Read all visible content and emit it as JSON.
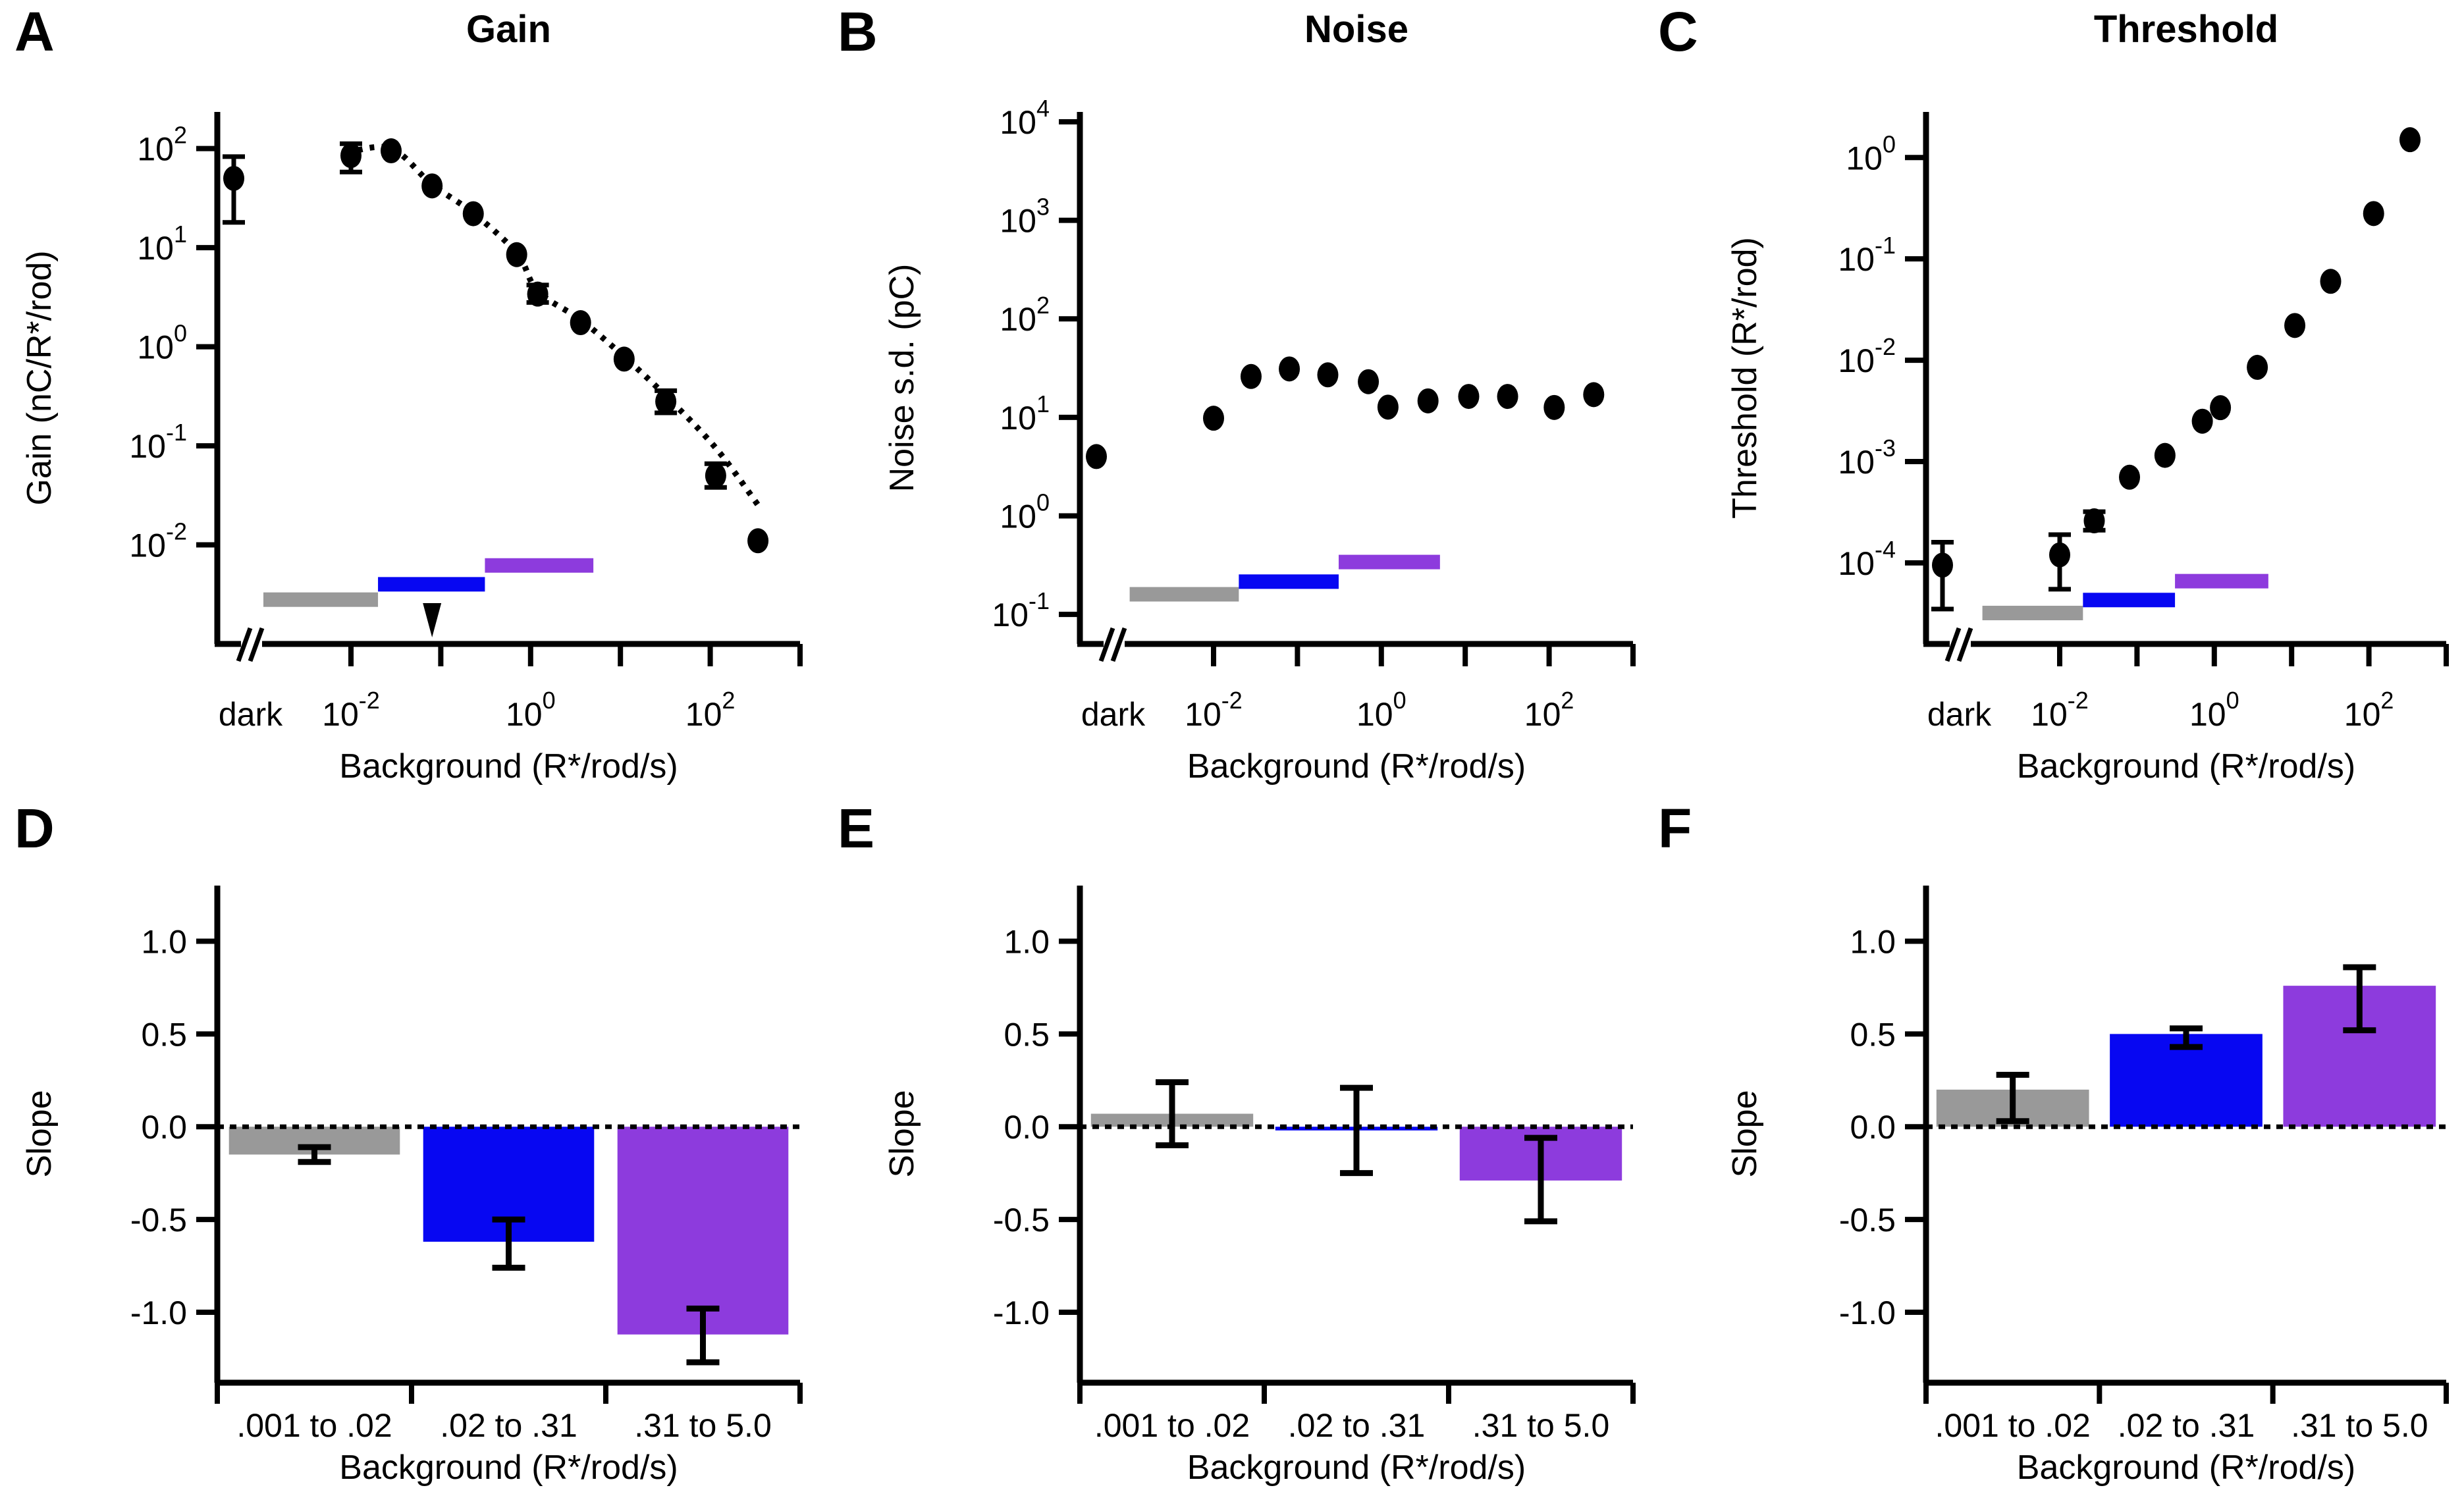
{
  "colors": {
    "gray": "#999999",
    "blue": "#0707f2",
    "purple": "#8d3bdd",
    "black": "#000000",
    "background": "#ffffff"
  },
  "chart_data": [
    {
      "panel_label": "A",
      "type": "scatter-log",
      "title": "Gain",
      "ylabel": "Gain (nC/R*/rod)",
      "xlabel": "Background (R*/rod/s)",
      "dark_label": "dark",
      "x_log_range": [
        -2,
        3
      ],
      "x_tick_exponents": [
        -2,
        -1,
        0,
        1,
        2,
        3
      ],
      "x_labeled_exponents": [
        -2,
        0,
        2
      ],
      "y_log_range": [
        2.37,
        -3.0
      ],
      "y_tick_exponents": [
        2,
        1,
        0,
        -1,
        -2
      ],
      "axis_break": true,
      "dark_point": {
        "value": 50,
        "err_lo": 18,
        "err_hi": 83
      },
      "points": {
        "x": [
          0.01,
          0.028,
          0.08,
          0.23,
          0.7,
          1.2,
          3.6,
          11,
          32,
          115,
          340
        ],
        "y": [
          85,
          95,
          42,
          22,
          8.5,
          3.4,
          1.75,
          0.75,
          0.28,
          0.05,
          0.011
        ],
        "err_lo": [
          58,
          86,
          38,
          19.5,
          7.6,
          2.8,
          1.6,
          0.67,
          0.215,
          0.038,
          0.0104
        ],
        "err_hi": [
          112,
          105,
          47,
          25,
          9.5,
          4.2,
          1.95,
          0.84,
          0.36,
          0.066,
          0.0117
        ]
      },
      "fit_curve_log10": [
        [
          -2.05,
          1.96
        ],
        [
          -1.55,
          2.0
        ],
        [
          -1.1,
          1.64
        ],
        [
          -0.64,
          1.35
        ],
        [
          -0.15,
          0.94
        ],
        [
          0.08,
          0.56
        ],
        [
          0.56,
          0.27
        ],
        [
          1.04,
          -0.1
        ],
        [
          1.51,
          -0.5
        ],
        [
          2.06,
          -1.02
        ],
        [
          2.55,
          -1.62
        ]
      ],
      "range_bars": [
        {
          "name": "gray",
          "x0": 0.001,
          "x1": 0.02,
          "y": 0.0028
        },
        {
          "name": "blue",
          "x0": 0.02,
          "x1": 0.31,
          "y": 0.004
        },
        {
          "name": "purple",
          "x0": 0.31,
          "x1": 5.0,
          "y": 0.0062
        }
      ],
      "arrow_marker_x": 0.08
    },
    {
      "panel_label": "B",
      "type": "scatter-log",
      "title": "Noise",
      "ylabel": "Noise s.d. (pC)",
      "xlabel": "Background (R*/rod/s)",
      "dark_label": "dark",
      "x_log_range": [
        -2,
        3
      ],
      "x_tick_exponents": [
        -2,
        -1,
        0,
        1,
        2,
        3
      ],
      "x_labeled_exponents": [
        -2,
        0,
        2
      ],
      "y_log_range": [
        4.1,
        -1.3
      ],
      "y_tick_exponents": [
        4,
        3,
        2,
        1,
        0,
        -1
      ],
      "axis_break": true,
      "dark_point": {
        "value": 4.0,
        "err_lo": 4.0,
        "err_hi": 4.0
      },
      "points": {
        "x": [
          0.01,
          0.028,
          0.08,
          0.23,
          0.7,
          1.2,
          3.6,
          11,
          32,
          115,
          340
        ],
        "y": [
          9.8,
          26,
          31,
          27,
          23,
          12.7,
          14.7,
          16.3,
          16.3,
          12.6,
          17
        ],
        "err_lo": [
          9.8,
          26,
          31,
          27,
          23,
          12.7,
          14.7,
          16.3,
          16.3,
          12.6,
          17
        ],
        "err_hi": [
          9.8,
          26,
          31,
          27,
          23,
          12.7,
          14.7,
          16.3,
          16.3,
          12.6,
          17
        ]
      },
      "fit_curve_log10": [],
      "range_bars": [
        {
          "name": "gray",
          "x0": 0.001,
          "x1": 0.02,
          "y": 0.16
        },
        {
          "name": "blue",
          "x0": 0.02,
          "x1": 0.31,
          "y": 0.215
        },
        {
          "name": "purple",
          "x0": 0.31,
          "x1": 5.0,
          "y": 0.34
        }
      ],
      "arrow_marker_x": null
    },
    {
      "panel_label": "C",
      "type": "scatter-log",
      "title": "Threshold",
      "ylabel": "Threshold (R*/rod)",
      "xlabel": "Background (R*/rod/s)",
      "dark_label": "dark",
      "x_log_range": [
        -2,
        3
      ],
      "x_tick_exponents": [
        -2,
        -1,
        0,
        1,
        2,
        3
      ],
      "x_labeled_exponents": [
        -2,
        0,
        2
      ],
      "y_log_range": [
        0.45,
        -4.8
      ],
      "y_tick_exponents": [
        0,
        -1,
        -2,
        -3,
        -4
      ],
      "axis_break": true,
      "dark_point": {
        "value": 9.5e-05,
        "err_lo": 3.5e-05,
        "err_hi": 0.00016
      },
      "points": {
        "x": [
          0.01,
          0.028,
          0.08,
          0.23,
          0.7,
          1.2,
          3.6,
          11,
          32,
          115,
          340
        ],
        "y": [
          0.00012,
          0.00026,
          0.0007,
          0.00115,
          0.0025,
          0.0034,
          0.0085,
          0.022,
          0.06,
          0.28,
          1.5
        ],
        "err_lo": [
          5.5e-05,
          0.00021,
          0.0006,
          0.001,
          0.0023,
          0.00315,
          0.0079,
          0.0195,
          0.052,
          0.23,
          1.45
        ],
        "err_hi": [
          0.00019,
          0.00032,
          0.00082,
          0.00132,
          0.00275,
          0.0037,
          0.0092,
          0.025,
          0.069,
          0.33,
          1.56
        ]
      },
      "fit_curve_log10": [],
      "range_bars": [
        {
          "name": "gray",
          "x0": 0.001,
          "x1": 0.02,
          "y": 3.2e-05
        },
        {
          "name": "blue",
          "x0": 0.02,
          "x1": 0.31,
          "y": 4.3e-05
        },
        {
          "name": "purple",
          "x0": 0.31,
          "x1": 5.0,
          "y": 6.6e-05
        }
      ],
      "arrow_marker_x": null
    },
    {
      "panel_label": "D",
      "type": "bar",
      "ylabel": "Slope",
      "xlabel": "Background (R*/rod/s)",
      "categories": [
        ".001 to .02",
        ".02 to .31",
        ".31 to 5.0"
      ],
      "bar_colors": [
        "gray",
        "blue",
        "purple"
      ],
      "values": [
        -0.15,
        -0.62,
        -1.12
      ],
      "err_lo": [
        -0.19,
        -0.76,
        -1.27
      ],
      "err_hi": [
        -0.11,
        -0.5,
        -0.98
      ],
      "y_ticks": [
        1.0,
        0.5,
        0.0,
        -0.5,
        -1.0
      ],
      "y_range": [
        1.3,
        -1.38
      ],
      "zero_line": true
    },
    {
      "panel_label": "E",
      "type": "bar",
      "ylabel": "Slope",
      "xlabel": "Background (R*/rod/s)",
      "categories": [
        ".001 to .02",
        ".02 to .31",
        ".31 to 5.0"
      ],
      "bar_colors": [
        "gray",
        "blue",
        "purple"
      ],
      "values": [
        0.07,
        -0.02,
        -0.29
      ],
      "err_lo": [
        -0.1,
        -0.25,
        -0.51
      ],
      "err_hi": [
        0.24,
        0.21,
        -0.06
      ],
      "y_ticks": [
        1.0,
        0.5,
        0.0,
        -0.5,
        -1.0
      ],
      "y_range": [
        1.3,
        -1.38
      ],
      "zero_line": true
    },
    {
      "panel_label": "F",
      "type": "bar",
      "ylabel": "Slope",
      "xlabel": "Background (R*/rod/s)",
      "categories": [
        ".001 to .02",
        ".02 to .31",
        ".31 to 5.0"
      ],
      "bar_colors": [
        "gray",
        "blue",
        "purple"
      ],
      "values": [
        0.2,
        0.5,
        0.76
      ],
      "err_lo": [
        0.03,
        0.43,
        0.52
      ],
      "err_hi": [
        0.28,
        0.53,
        0.86
      ],
      "y_ticks": [
        1.0,
        0.5,
        0.0,
        -0.5,
        -1.0
      ],
      "y_range": [
        1.3,
        -1.38
      ],
      "zero_line": true
    }
  ]
}
